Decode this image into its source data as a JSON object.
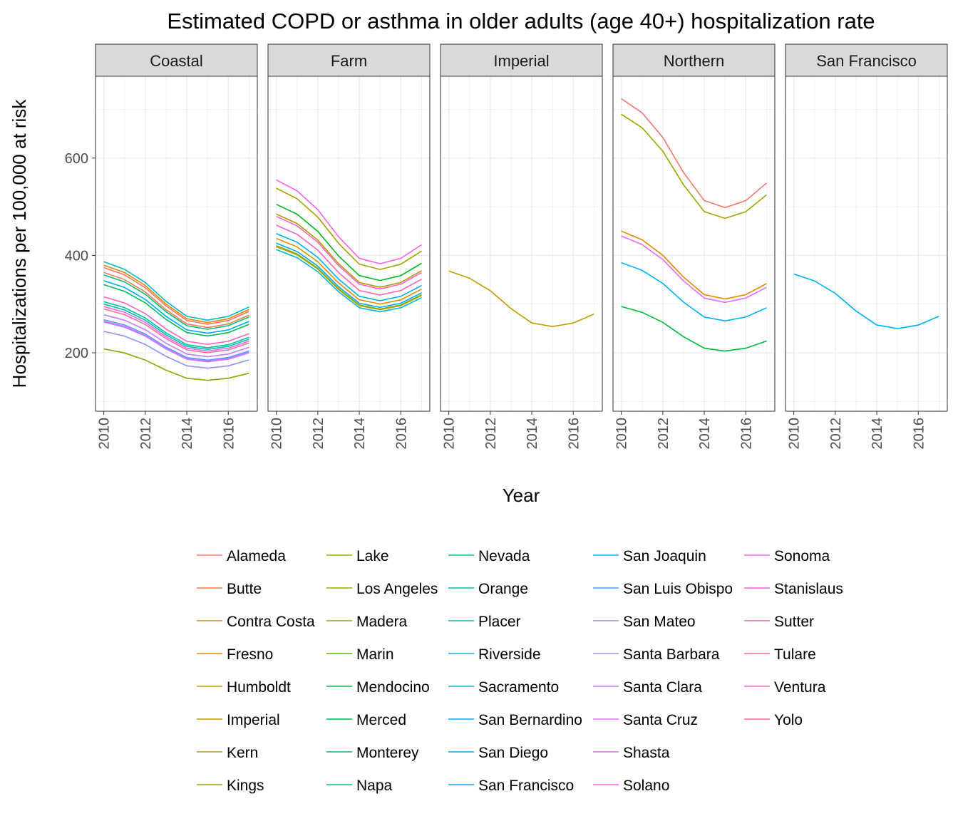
{
  "chart_data": {
    "type": "line",
    "title": "Estimated COPD or asthma in older adults (age 40+) hospitalization rate",
    "xlabel": "Year",
    "ylabel": "Hospitalizations per 100,000 at risk",
    "x": [
      2010,
      2011,
      2012,
      2013,
      2014,
      2015,
      2016,
      2017
    ],
    "x_ticks": [
      2010,
      2012,
      2014,
      2016
    ],
    "xlim": [
      2009.6,
      2017.4
    ],
    "y_ticks": [
      200,
      400,
      600
    ],
    "ylim": [
      80,
      768
    ],
    "shape": [
      1.0,
      0.96,
      0.89,
      0.79,
      0.71,
      0.69,
      0.71,
      0.76
    ],
    "grid": true,
    "legend_placement": "bottom",
    "panels": [
      {
        "name": "Coastal",
        "series": [
          {
            "name": "Alameda",
            "color": "#F8766D",
            "start": 375
          },
          {
            "name": "Butte",
            "color": "#F07F4C",
            "start": 365
          },
          {
            "name": "Contra Costa",
            "color": "#E58700",
            "start": 380
          },
          {
            "name": "Marin",
            "color": "#7CAE00",
            "start": 208
          },
          {
            "name": "Monterey",
            "color": "#00BC59",
            "start": 340
          },
          {
            "name": "Napa",
            "color": "#00BF7D",
            "start": 360
          },
          {
            "name": "Nevada",
            "color": "#00C097",
            "start": 305
          },
          {
            "name": "Orange",
            "color": "#00C0AF",
            "start": 300
          },
          {
            "name": "Placer",
            "color": "#00BCC3",
            "start": 387
          },
          {
            "name": "San Diego",
            "color": "#00A9FF",
            "start": 348
          },
          {
            "name": "San Luis Obispo",
            "color": "#529EFF",
            "start": 268
          },
          {
            "name": "San Mateo",
            "color": "#8F91FF",
            "start": 244
          },
          {
            "name": "Santa Barbara",
            "color": "#AE87FF",
            "start": 263
          },
          {
            "name": "Santa Clara",
            "color": "#C77CFF",
            "start": 278
          },
          {
            "name": "Santa Cruz",
            "color": "#DC71FA",
            "start": 265
          },
          {
            "name": "Sonoma",
            "color": "#F166E8",
            "start": 295
          },
          {
            "name": "Ventura",
            "color": "#FF62BC",
            "start": 315
          },
          {
            "name": "Yolo",
            "color": "#FD6C98",
            "start": 290
          }
        ]
      },
      {
        "name": "Farm",
        "series": [
          {
            "name": "Fresno",
            "color": "#D89000",
            "start": 435
          },
          {
            "name": "Kern",
            "color": "#B79F00",
            "start": 418
          },
          {
            "name": "Kings",
            "color": "#A3A500",
            "start": 538
          },
          {
            "name": "Madera",
            "color": "#8AAB00",
            "start": 420
          },
          {
            "name": "Merced",
            "color": "#00B81F",
            "start": 505
          },
          {
            "name": "Riverside",
            "color": "#00B6D4",
            "start": 412
          },
          {
            "name": "Sacramento",
            "color": "#00B2E4",
            "start": 445
          },
          {
            "name": "San Joaquin",
            "color": "#00A6FF",
            "start": 425
          },
          {
            "name": "Stanislaus",
            "color": "#F863DF",
            "start": 555
          },
          {
            "name": "Sutter",
            "color": "#FF61CC",
            "start": 480
          },
          {
            "name": "Tulare",
            "color": "#FF63B6",
            "start": 462
          },
          {
            "name": "Los Angeles",
            "color": "#B09C00",
            "start": 485
          }
        ]
      },
      {
        "name": "Imperial",
        "series": [
          {
            "name": "Imperial",
            "color": "#C49A00",
            "start": 368
          }
        ]
      },
      {
        "name": "Northern",
        "series": [
          {
            "name": "Humboldt",
            "color": "#E18A00",
            "start": 450
          },
          {
            "name": "Lake",
            "color": "#9DA700",
            "start": 690
          },
          {
            "name": "Mendocino",
            "color": "#00BA38",
            "start": 295
          },
          {
            "name": "San Bernardino",
            "color": "#00B0F6",
            "start": 385
          },
          {
            "name": "Shasta",
            "color": "#E76BF3",
            "start": 440
          },
          {
            "name": "Alameda",
            "color": "#F8766D",
            "start": 722
          }
        ]
      },
      {
        "name": "San Francisco",
        "series": [
          {
            "name": "San Francisco",
            "color": "#00ABFD",
            "start": 362
          }
        ]
      }
    ],
    "legend": [
      {
        "name": "Alameda",
        "color": "#F8766D"
      },
      {
        "name": "Butte",
        "color": "#F07F4C"
      },
      {
        "name": "Contra Costa",
        "color": "#E58700"
      },
      {
        "name": "Fresno",
        "color": "#D89000"
      },
      {
        "name": "Humboldt",
        "color": "#CB9600"
      },
      {
        "name": "Imperial",
        "color": "#C49A00"
      },
      {
        "name": "Kern",
        "color": "#B79F00"
      },
      {
        "name": "Kings",
        "color": "#A3A500"
      },
      {
        "name": "Lake",
        "color": "#9DA700"
      },
      {
        "name": "Los Angeles",
        "color": "#8FAA00"
      },
      {
        "name": "Madera",
        "color": "#7CAE00"
      },
      {
        "name": "Marin",
        "color": "#5BB300"
      },
      {
        "name": "Mendocino",
        "color": "#00BA38"
      },
      {
        "name": "Merced",
        "color": "#00BC59"
      },
      {
        "name": "Monterey",
        "color": "#00BF7D"
      },
      {
        "name": "Napa",
        "color": "#00C08B"
      },
      {
        "name": "Nevada",
        "color": "#00C097"
      },
      {
        "name": "Orange",
        "color": "#00C0AF"
      },
      {
        "name": "Placer",
        "color": "#00BCC3"
      },
      {
        "name": "Riverside",
        "color": "#00B6D4"
      },
      {
        "name": "Sacramento",
        "color": "#00B2E4"
      },
      {
        "name": "San Bernardino",
        "color": "#00B0F6"
      },
      {
        "name": "San Diego",
        "color": "#00A9FF"
      },
      {
        "name": "San Francisco",
        "color": "#00ABFD"
      },
      {
        "name": "San Joaquin",
        "color": "#00A6FF"
      },
      {
        "name": "San Luis Obispo",
        "color": "#529EFF"
      },
      {
        "name": "San Mateo",
        "color": "#8F91FF"
      },
      {
        "name": "Santa Barbara",
        "color": "#AE87FF"
      },
      {
        "name": "Santa Clara",
        "color": "#C77CFF"
      },
      {
        "name": "Santa Cruz",
        "color": "#DC71FA"
      },
      {
        "name": "Shasta",
        "color": "#E76BF3"
      },
      {
        "name": "Solano",
        "color": "#EF67EB"
      },
      {
        "name": "Sonoma",
        "color": "#F166E8"
      },
      {
        "name": "Stanislaus",
        "color": "#F863DF"
      },
      {
        "name": "Sutter",
        "color": "#FF61CC"
      },
      {
        "name": "Tulare",
        "color": "#FF63B6"
      },
      {
        "name": "Ventura",
        "color": "#FF62BC"
      },
      {
        "name": "Yolo",
        "color": "#FD6C98"
      }
    ]
  }
}
